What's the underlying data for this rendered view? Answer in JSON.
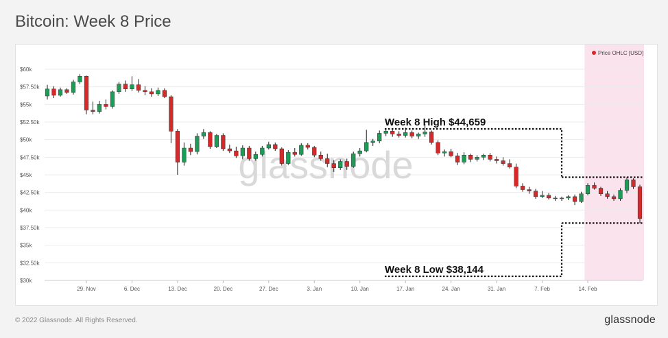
{
  "header": {
    "title": "Bitcoin: Week 8 Price"
  },
  "watermark": "glassnode",
  "footer": {
    "copyright": "© 2022 Glassnode. All Rights Reserved.",
    "brand": "glassnode"
  },
  "colors": {
    "up": "#1e9b57",
    "down": "#d62a2a",
    "highlight": "#fbe3ee",
    "grid": "#ebebeb",
    "legend_dot": "#d62a2a"
  },
  "chart_data": {
    "type": "candlestick",
    "title": "Bitcoin: Week 8 Price",
    "legend": [
      {
        "label": "Price OHLC [USD]",
        "color": "#d62a2a",
        "position": "top-right"
      }
    ],
    "x_axis": {
      "start": "2021-11-23",
      "end": "2022-02-22",
      "tick_labels": [
        "29. Nov",
        "6. Dec",
        "13. Dec",
        "20. Dec",
        "27. Dec",
        "3. Jan",
        "10. Jan",
        "17. Jan",
        "24. Jan",
        "31. Jan",
        "7. Feb",
        "14. Feb"
      ],
      "tick_dates": [
        "2021-11-29",
        "2021-12-06",
        "2021-12-13",
        "2021-12-20",
        "2021-12-27",
        "2022-01-03",
        "2022-01-10",
        "2022-01-17",
        "2022-01-24",
        "2022-01-31",
        "2022-02-07",
        "2022-02-14"
      ]
    },
    "y_axis": {
      "range": [
        30000,
        60000
      ],
      "tick_values": [
        30000,
        32500,
        35000,
        37500,
        40000,
        42500,
        45000,
        47500,
        50000,
        52500,
        55000,
        57500,
        60000
      ],
      "tick_labels": [
        "$30k",
        "$32.50k",
        "$35k",
        "$37.50k",
        "$40k",
        "$42.50k",
        "$45k",
        "$47.50k",
        "$50k",
        "$52.50k",
        "$55k",
        "$57.50k",
        "$60k"
      ],
      "grid": true
    },
    "highlight_range": {
      "start": "2022-02-14",
      "end": "2022-02-22"
    },
    "annotations": [
      {
        "text": "Week 8 High $44,659",
        "value": 44659
      },
      {
        "text": "Week 8 Low $38,144",
        "value": 38144
      }
    ],
    "candles": [
      {
        "date": "2021-11-23",
        "open": 56200,
        "high": 57800,
        "low": 55700,
        "close": 57200
      },
      {
        "date": "2021-11-24",
        "open": 57200,
        "high": 57600,
        "low": 55900,
        "close": 56300
      },
      {
        "date": "2021-11-25",
        "open": 56300,
        "high": 57400,
        "low": 56100,
        "close": 57100
      },
      {
        "date": "2021-11-26",
        "open": 57100,
        "high": 57300,
        "low": 56500,
        "close": 56700
      },
      {
        "date": "2021-11-27",
        "open": 56700,
        "high": 58500,
        "low": 56400,
        "close": 58200
      },
      {
        "date": "2021-11-28",
        "open": 58200,
        "high": 59300,
        "low": 57900,
        "close": 59000
      },
      {
        "date": "2021-11-29",
        "open": 59000,
        "high": 59100,
        "low": 53600,
        "close": 54200
      },
      {
        "date": "2021-11-30",
        "open": 54200,
        "high": 55400,
        "low": 53600,
        "close": 54000
      },
      {
        "date": "2021-12-01",
        "open": 54000,
        "high": 55500,
        "low": 53700,
        "close": 55000
      },
      {
        "date": "2021-12-02",
        "open": 55000,
        "high": 55700,
        "low": 54300,
        "close": 54700
      },
      {
        "date": "2021-12-03",
        "open": 54700,
        "high": 57000,
        "low": 54400,
        "close": 56800
      },
      {
        "date": "2021-12-04",
        "open": 56800,
        "high": 58200,
        "low": 56500,
        "close": 57900
      },
      {
        "date": "2021-12-05",
        "open": 57900,
        "high": 58400,
        "low": 56800,
        "close": 57200
      },
      {
        "date": "2021-12-06",
        "open": 57200,
        "high": 59000,
        "low": 56900,
        "close": 57800
      },
      {
        "date": "2021-12-07",
        "open": 57800,
        "high": 58600,
        "low": 56700,
        "close": 57000
      },
      {
        "date": "2021-12-08",
        "open": 57000,
        "high": 57600,
        "low": 56300,
        "close": 56800
      },
      {
        "date": "2021-12-09",
        "open": 56800,
        "high": 57300,
        "low": 56100,
        "close": 56500
      },
      {
        "date": "2021-12-10",
        "open": 56500,
        "high": 57400,
        "low": 56200,
        "close": 57000
      },
      {
        "date": "2021-12-11",
        "open": 57000,
        "high": 57300,
        "low": 55900,
        "close": 56100
      },
      {
        "date": "2021-12-12",
        "open": 56100,
        "high": 56300,
        "low": 49500,
        "close": 51200
      },
      {
        "date": "2021-12-13",
        "open": 51200,
        "high": 51500,
        "low": 45000,
        "close": 46800
      },
      {
        "date": "2021-12-14",
        "open": 46800,
        "high": 49600,
        "low": 46300,
        "close": 48800
      },
      {
        "date": "2021-12-15",
        "open": 48800,
        "high": 49400,
        "low": 47800,
        "close": 48300
      },
      {
        "date": "2021-12-16",
        "open": 48300,
        "high": 50900,
        "low": 47900,
        "close": 50500
      },
      {
        "date": "2021-12-17",
        "open": 50500,
        "high": 51500,
        "low": 50100,
        "close": 51000
      },
      {
        "date": "2021-12-18",
        "open": 51000,
        "high": 51200,
        "low": 48700,
        "close": 49000
      },
      {
        "date": "2021-12-19",
        "open": 49000,
        "high": 50800,
        "low": 48800,
        "close": 50600
      },
      {
        "date": "2021-12-20",
        "open": 50600,
        "high": 50900,
        "low": 48400,
        "close": 48700
      },
      {
        "date": "2021-12-21",
        "open": 48700,
        "high": 49300,
        "low": 48100,
        "close": 48400
      },
      {
        "date": "2021-12-22",
        "open": 48400,
        "high": 49000,
        "low": 47400,
        "close": 47700
      },
      {
        "date": "2021-12-23",
        "open": 47700,
        "high": 49200,
        "low": 47200,
        "close": 48800
      },
      {
        "date": "2021-12-24",
        "open": 48800,
        "high": 49100,
        "low": 47000,
        "close": 47300
      },
      {
        "date": "2021-12-25",
        "open": 47300,
        "high": 48300,
        "low": 47000,
        "close": 47900
      },
      {
        "date": "2021-12-26",
        "open": 47900,
        "high": 49100,
        "low": 47600,
        "close": 48800
      },
      {
        "date": "2021-12-27",
        "open": 48800,
        "high": 49700,
        "low": 48600,
        "close": 49300
      },
      {
        "date": "2021-12-28",
        "open": 49300,
        "high": 49600,
        "low": 48400,
        "close": 48700
      },
      {
        "date": "2021-12-29",
        "open": 48700,
        "high": 48900,
        "low": 46300,
        "close": 46600
      },
      {
        "date": "2021-12-30",
        "open": 46600,
        "high": 48500,
        "low": 46400,
        "close": 48200
      },
      {
        "date": "2021-12-31",
        "open": 48200,
        "high": 48800,
        "low": 47600,
        "close": 47900
      },
      {
        "date": "2022-01-01",
        "open": 47900,
        "high": 49500,
        "low": 47700,
        "close": 49200
      },
      {
        "date": "2022-01-02",
        "open": 49200,
        "high": 49500,
        "low": 48600,
        "close": 48900
      },
      {
        "date": "2022-01-03",
        "open": 48900,
        "high": 49100,
        "low": 47500,
        "close": 47800
      },
      {
        "date": "2022-01-04",
        "open": 47800,
        "high": 48300,
        "low": 47000,
        "close": 47300
      },
      {
        "date": "2022-01-05",
        "open": 47300,
        "high": 48000,
        "low": 46100,
        "close": 46600
      },
      {
        "date": "2022-01-06",
        "open": 46600,
        "high": 47100,
        "low": 45400,
        "close": 46000
      },
      {
        "date": "2022-01-07",
        "open": 46000,
        "high": 47200,
        "low": 45700,
        "close": 46900
      },
      {
        "date": "2022-01-08",
        "open": 46900,
        "high": 47300,
        "low": 45700,
        "close": 46200
      },
      {
        "date": "2022-01-09",
        "open": 46200,
        "high": 48300,
        "low": 46000,
        "close": 48000
      },
      {
        "date": "2022-01-10",
        "open": 48000,
        "high": 48800,
        "low": 47600,
        "close": 48400
      },
      {
        "date": "2022-01-11",
        "open": 48400,
        "high": 51400,
        "low": 48200,
        "close": 49600
      },
      {
        "date": "2022-01-12",
        "open": 49600,
        "high": 50100,
        "low": 49100,
        "close": 49800
      },
      {
        "date": "2022-01-13",
        "open": 49800,
        "high": 51300,
        "low": 49500,
        "close": 50900
      },
      {
        "date": "2022-01-14",
        "open": 50900,
        "high": 51600,
        "low": 50500,
        "close": 51200
      },
      {
        "date": "2022-01-15",
        "open": 51200,
        "high": 51500,
        "low": 50400,
        "close": 50800
      },
      {
        "date": "2022-01-16",
        "open": 50800,
        "high": 51200,
        "low": 50300,
        "close": 50600
      },
      {
        "date": "2022-01-17",
        "open": 50600,
        "high": 51700,
        "low": 50300,
        "close": 51000
      },
      {
        "date": "2022-01-18",
        "open": 51000,
        "high": 51300,
        "low": 50200,
        "close": 50500
      },
      {
        "date": "2022-01-19",
        "open": 50500,
        "high": 51000,
        "low": 50100,
        "close": 50800
      },
      {
        "date": "2022-01-20",
        "open": 50800,
        "high": 52200,
        "low": 50400,
        "close": 51100
      },
      {
        "date": "2022-01-21",
        "open": 51100,
        "high": 51300,
        "low": 49300,
        "close": 49600
      },
      {
        "date": "2022-01-22",
        "open": 49600,
        "high": 49900,
        "low": 47800,
        "close": 48100
      },
      {
        "date": "2022-01-23",
        "open": 48100,
        "high": 48600,
        "low": 47600,
        "close": 48300
      },
      {
        "date": "2022-01-24",
        "open": 48300,
        "high": 48700,
        "low": 47500,
        "close": 47700
      },
      {
        "date": "2022-01-25",
        "open": 47700,
        "high": 48100,
        "low": 46400,
        "close": 46800
      },
      {
        "date": "2022-01-26",
        "open": 46800,
        "high": 48200,
        "low": 46500,
        "close": 47800
      },
      {
        "date": "2022-01-27",
        "open": 47800,
        "high": 48000,
        "low": 46800,
        "close": 47200
      },
      {
        "date": "2022-01-28",
        "open": 47200,
        "high": 47800,
        "low": 46900,
        "close": 47500
      },
      {
        "date": "2022-01-29",
        "open": 47500,
        "high": 48000,
        "low": 47100,
        "close": 47800
      },
      {
        "date": "2022-01-30",
        "open": 47800,
        "high": 48100,
        "low": 46900,
        "close": 47200
      },
      {
        "date": "2022-01-31",
        "open": 47200,
        "high": 47600,
        "low": 46600,
        "close": 47000
      },
      {
        "date": "2022-02-01",
        "open": 47000,
        "high": 47500,
        "low": 46300,
        "close": 46600
      },
      {
        "date": "2022-02-02",
        "open": 46600,
        "high": 47200,
        "low": 45900,
        "close": 46100
      },
      {
        "date": "2022-02-03",
        "open": 46100,
        "high": 46600,
        "low": 43100,
        "close": 43400
      },
      {
        "date": "2022-02-04",
        "open": 43400,
        "high": 43800,
        "low": 42600,
        "close": 42900
      },
      {
        "date": "2022-02-05",
        "open": 42900,
        "high": 43300,
        "low": 42300,
        "close": 42700
      },
      {
        "date": "2022-02-06",
        "open": 42700,
        "high": 43000,
        "low": 41600,
        "close": 41900
      },
      {
        "date": "2022-02-07",
        "open": 41900,
        "high": 42700,
        "low": 41700,
        "close": 42100
      },
      {
        "date": "2022-02-08",
        "open": 42100,
        "high": 42400,
        "low": 41500,
        "close": 41700
      },
      {
        "date": "2022-02-09",
        "open": 41700,
        "high": 42000,
        "low": 41300,
        "close": 41600
      },
      {
        "date": "2022-02-10",
        "open": 41600,
        "high": 41900,
        "low": 41300,
        "close": 41700
      },
      {
        "date": "2022-02-11",
        "open": 41700,
        "high": 42100,
        "low": 41400,
        "close": 41900
      },
      {
        "date": "2022-02-12",
        "open": 41900,
        "high": 42200,
        "low": 40700,
        "close": 41200
      },
      {
        "date": "2022-02-13",
        "open": 41200,
        "high": 42600,
        "low": 41000,
        "close": 42300
      },
      {
        "date": "2022-02-14",
        "open": 42300,
        "high": 43800,
        "low": 42100,
        "close": 43500
      },
      {
        "date": "2022-02-15",
        "open": 43500,
        "high": 43900,
        "low": 42900,
        "close": 43100
      },
      {
        "date": "2022-02-16",
        "open": 43100,
        "high": 43300,
        "low": 42000,
        "close": 42300
      },
      {
        "date": "2022-02-17",
        "open": 42300,
        "high": 42700,
        "low": 41600,
        "close": 41900
      },
      {
        "date": "2022-02-18",
        "open": 41900,
        "high": 42200,
        "low": 41300,
        "close": 41600
      },
      {
        "date": "2022-02-19",
        "open": 41600,
        "high": 43100,
        "low": 41300,
        "close": 42800
      },
      {
        "date": "2022-02-20",
        "open": 42800,
        "high": 44659,
        "low": 42400,
        "close": 44300
      },
      {
        "date": "2022-02-21",
        "open": 44300,
        "high": 44500,
        "low": 43000,
        "close": 43300
      },
      {
        "date": "2022-02-22",
        "open": 43300,
        "high": 43600,
        "low": 38144,
        "close": 38800
      }
    ]
  }
}
